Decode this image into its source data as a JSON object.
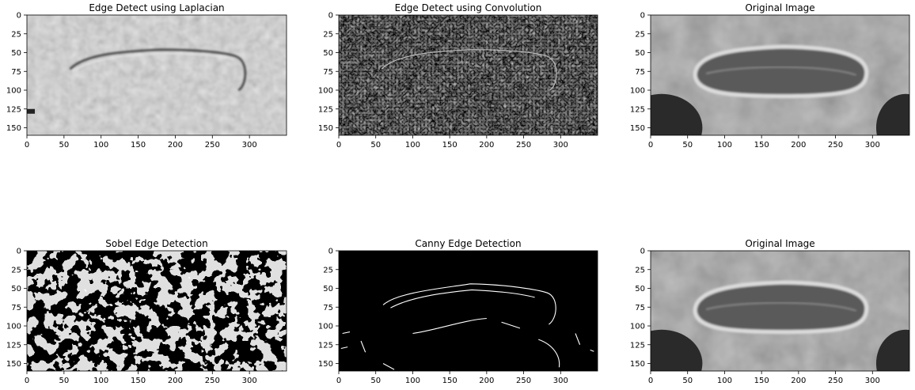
{
  "figure": {
    "panels": [
      {
        "id": "laplacian",
        "title": "Edge Detect using Laplacian",
        "style": "laplacian",
        "x_ticks": [
          "0",
          "50",
          "100",
          "150",
          "200",
          "250",
          "300"
        ],
        "y_ticks": [
          "0",
          "25",
          "50",
          "75",
          "100",
          "125",
          "150"
        ],
        "x_range": [
          0,
          350
        ],
        "y_range": [
          0,
          160
        ]
      },
      {
        "id": "convolution",
        "title": "Edge Detect using Convolution",
        "style": "convolution",
        "x_ticks": [
          "0",
          "50",
          "100",
          "150",
          "200",
          "250",
          "300"
        ],
        "y_ticks": [
          "0",
          "25",
          "50",
          "75",
          "100",
          "125",
          "150"
        ],
        "x_range": [
          0,
          350
        ],
        "y_range": [
          0,
          160
        ]
      },
      {
        "id": "original-top",
        "title": "Original Image",
        "style": "original",
        "x_ticks": [
          "0",
          "50",
          "100",
          "150",
          "200",
          "250",
          "300"
        ],
        "y_ticks": [
          "0",
          "25",
          "50",
          "75",
          "100",
          "125",
          "150"
        ],
        "x_range": [
          0,
          350
        ],
        "y_range": [
          0,
          160
        ]
      },
      {
        "id": "sobel",
        "title": "Sobel Edge Detection",
        "style": "sobel",
        "x_ticks": [
          "0",
          "50",
          "100",
          "150",
          "200",
          "250",
          "300"
        ],
        "y_ticks": [
          "0",
          "25",
          "50",
          "75",
          "100",
          "125",
          "150"
        ],
        "x_range": [
          0,
          350
        ],
        "y_range": [
          0,
          160
        ]
      },
      {
        "id": "canny",
        "title": "Canny Edge Detection",
        "style": "canny",
        "x_ticks": [
          "0",
          "50",
          "100",
          "150",
          "200",
          "250",
          "300"
        ],
        "y_ticks": [
          "0",
          "25",
          "50",
          "75",
          "100",
          "125",
          "150"
        ],
        "x_range": [
          0,
          350
        ],
        "y_range": [
          0,
          160
        ]
      },
      {
        "id": "original-bottom",
        "title": "Original Image",
        "style": "original",
        "x_ticks": [
          "0",
          "50",
          "100",
          "150",
          "200",
          "250",
          "300"
        ],
        "y_ticks": [
          "0",
          "25",
          "50",
          "75",
          "100",
          "125",
          "150"
        ],
        "x_range": [
          0,
          350
        ],
        "y_range": [
          0,
          160
        ]
      }
    ]
  }
}
